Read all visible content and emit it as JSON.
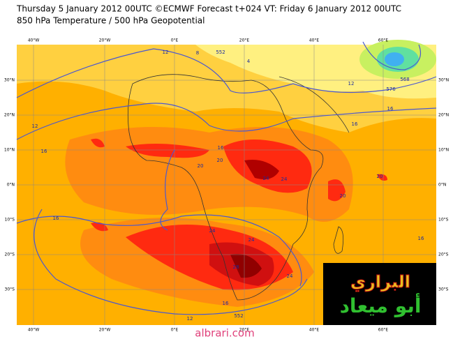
{
  "title": "Thursday 5 January 2012 00UTC ©ECMWF Forecast t+024 VT: Friday 6 January 2012 00UTC",
  "subtitle": "850 hPa Temperature / 500 hPa Geopotential",
  "lon_labels": [
    "40°W",
    "20°W",
    "0°E",
    "20°E",
    "40°E",
    "60°E"
  ],
  "lat_labels": [
    "30°N",
    "20°N",
    "10°N",
    "0°N",
    "10°S",
    "20°S",
    "30°S"
  ],
  "contour_labels": [
    "12",
    "8",
    "552",
    "4",
    "12",
    "16",
    "16",
    "20",
    "20",
    "16",
    "24",
    "24",
    "24",
    "24",
    "28",
    "24",
    "16",
    "12",
    "552",
    "16",
    "16",
    "20",
    "20",
    "16",
    "576",
    "12",
    "568"
  ],
  "watermark": {
    "line1": "البراري",
    "line2": "أبو ميعاد",
    "site": "albrari.com"
  }
}
